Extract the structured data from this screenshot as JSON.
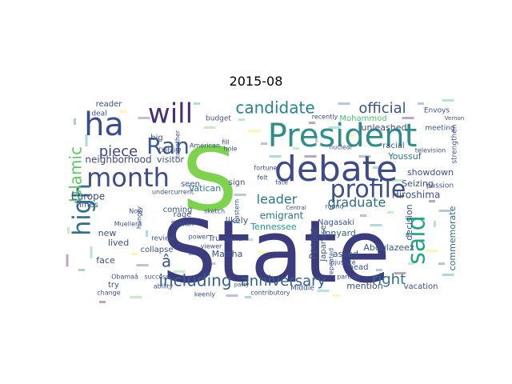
{
  "chart_data": {
    "type": "wordcloud",
    "title": "2015-08",
    "background": "#ffffff",
    "colormap": "viridis",
    "words": [
      {
        "text": "State",
        "color": "#3b3b7e"
      },
      {
        "text": "S",
        "color": "#7ed34e"
      },
      {
        "text": "President",
        "color": "#2e8e8a"
      },
      {
        "text": "debate",
        "color": "#3f4a88"
      },
      {
        "text": "ha",
        "color": "#3a4d8a"
      },
      {
        "text": "will",
        "color": "#472d7b"
      },
      {
        "text": "month",
        "color": "#3e4c8a"
      },
      {
        "text": "Ran",
        "color": "#3c5a8c"
      },
      {
        "text": "high",
        "color": "#2f6e8e"
      },
      {
        "text": "said",
        "color": "#21a685"
      },
      {
        "text": "profile",
        "color": "#3c4f8a"
      },
      {
        "text": "candidate",
        "color": "#26828e"
      },
      {
        "text": "official",
        "color": "#3b528b"
      },
      {
        "text": "piece",
        "color": "#3f4788"
      },
      {
        "text": "Islamic",
        "color": "#5ec962"
      },
      {
        "text": "including",
        "color": "#34618d"
      },
      {
        "text": "anniversary",
        "color": "#33628d"
      },
      {
        "text": "right",
        "color": "#2c728e"
      },
      {
        "text": "leader",
        "color": "#2a788e"
      },
      {
        "text": "graduate",
        "color": "#31688e"
      },
      {
        "text": "emigrant",
        "color": "#2a768e"
      },
      {
        "text": "Europe",
        "color": "#3e4a89"
      },
      {
        "text": "neighborhood",
        "color": "#414487"
      },
      {
        "text": "Youssuf",
        "color": "#2c728e"
      },
      {
        "text": "showdown",
        "color": "#3b528b"
      },
      {
        "text": "Hiroshima",
        "color": "#3b528b"
      },
      {
        "text": "unleashed",
        "color": "#3e4989"
      },
      {
        "text": "Mohammod",
        "color": "#4ac16d"
      },
      {
        "text": "Vatican",
        "color": "#2a788e"
      },
      {
        "text": "Tennessee",
        "color": "#1f9a8a"
      },
      {
        "text": "Seizing",
        "color": "#3b528b"
      },
      {
        "text": "Abdulazeez",
        "color": "#38588c"
      },
      {
        "text": "decision",
        "color": "#3b528b"
      },
      {
        "text": "commemorate",
        "color": "#31688e"
      },
      {
        "text": "People",
        "color": "#39568c"
      },
      {
        "text": "Japanese",
        "color": "#3b528b"
      },
      {
        "text": "Innyard",
        "color": "#33638d"
      },
      {
        "text": "Trumanâ",
        "color": "#414487"
      },
      {
        "text": "Martha",
        "color": "#3b528b"
      },
      {
        "text": "visitor",
        "color": "#3b528b"
      },
      {
        "text": "budget",
        "color": "#3b528b"
      },
      {
        "text": "recently",
        "color": "#3e4989"
      },
      {
        "text": "reader",
        "color": "#3b528b"
      },
      {
        "text": "Envoys",
        "color": "#3b528b"
      },
      {
        "text": "meeting",
        "color": "#3b528b"
      },
      {
        "text": "strengthen",
        "color": "#3b528b"
      },
      {
        "text": "passion",
        "color": "#3b528b"
      },
      {
        "text": "television",
        "color": "#3b528b"
      },
      {
        "text": "Nagasaki",
        "color": "#3b528b"
      },
      {
        "text": "asked",
        "color": "#3b528b"
      },
      {
        "text": "mention",
        "color": "#3b528b"
      },
      {
        "text": "vacation",
        "color": "#3b528b"
      },
      {
        "text": "Middle",
        "color": "#3b528b"
      },
      {
        "text": "try",
        "color": "#3b528b"
      },
      {
        "text": "face",
        "color": "#3b528b"
      },
      {
        "text": "lived",
        "color": "#3b528b"
      },
      {
        "text": "new",
        "color": "#3b528b"
      },
      {
        "text": "coming",
        "color": "#3b528b"
      },
      {
        "text": "seen",
        "color": "#3b528b"
      },
      {
        "text": "rage",
        "color": "#3b528b"
      },
      {
        "text": "likely",
        "color": "#3b528b"
      },
      {
        "text": "sign",
        "color": "#3b528b"
      },
      {
        "text": "head",
        "color": "#3b528b"
      },
      {
        "text": "collapse",
        "color": "#3b528b"
      },
      {
        "text": "big",
        "color": "#3b528b"
      },
      {
        "text": "Times",
        "color": "#3b528b"
      },
      {
        "text": "Syrian",
        "color": "#3b528b"
      },
      {
        "text": "Obamaâ",
        "color": "#3b528b"
      },
      {
        "text": "keenly",
        "color": "#3b528b"
      },
      {
        "text": "ability",
        "color": "#3b528b"
      },
      {
        "text": "review",
        "color": "#3b528b"
      },
      {
        "text": "power",
        "color": "#3b528b"
      },
      {
        "text": "viewer",
        "color": "#3b528b"
      },
      {
        "text": "sketch",
        "color": "#3b528b"
      },
      {
        "text": "Eastern",
        "color": "#3b528b"
      },
      {
        "text": "fate",
        "color": "#3b528b"
      },
      {
        "text": "round",
        "color": "#3b528b"
      },
      {
        "text": "nuclear",
        "color": "#3b528b"
      },
      {
        "text": "racial",
        "color": "#3b528b"
      },
      {
        "text": "fortune",
        "color": "#3b528b"
      },
      {
        "text": "felt",
        "color": "#3b528b"
      },
      {
        "text": "hole",
        "color": "#3b528b"
      },
      {
        "text": "fill",
        "color": "#3b528b"
      },
      {
        "text": "American",
        "color": "#3b528b"
      },
      {
        "text": "together",
        "color": "#3b528b"
      },
      {
        "text": "Details",
        "color": "#3b528b"
      },
      {
        "text": "deal",
        "color": "#3b528b"
      },
      {
        "text": "undercurrent",
        "color": "#3b528b"
      },
      {
        "text": "hungry",
        "color": "#3b528b"
      },
      {
        "text": "Muellerâ",
        "color": "#3b528b"
      },
      {
        "text": "change",
        "color": "#3b528b"
      },
      {
        "text": "contributory",
        "color": "#3b528b"
      },
      {
        "text": "partner",
        "color": "#3b528b"
      },
      {
        "text": "injustice",
        "color": "#3b528b"
      },
      {
        "text": "repeated",
        "color": "#3b528b"
      },
      {
        "text": "Central",
        "color": "#3b528b"
      },
      {
        "text": "party",
        "color": "#3b528b"
      },
      {
        "text": "Vernon",
        "color": "#3b528b"
      },
      {
        "text": "Now",
        "color": "#3b528b"
      },
      {
        "text": "success",
        "color": "#3b528b"
      },
      {
        "text": "â",
        "color": "#3b528b"
      }
    ]
  }
}
